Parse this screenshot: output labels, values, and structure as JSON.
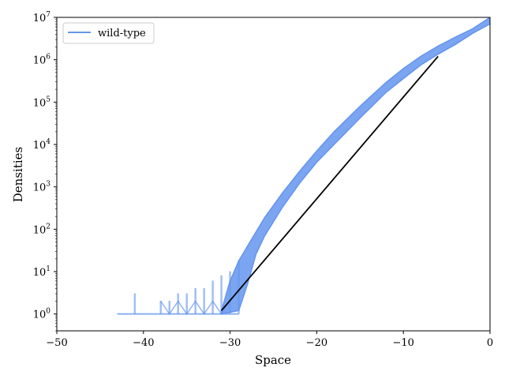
{
  "chart_data": {
    "type": "line",
    "title": "",
    "xlabel": "Space",
    "ylabel": "Densities",
    "xlim": [
      -50,
      0
    ],
    "ylim": [
      0.4,
      10000000
    ],
    "y_scale": "log",
    "grid": false,
    "legend_placement": "top-left",
    "x_ticks": [
      -50,
      -40,
      -30,
      -20,
      -10,
      0
    ],
    "x_tick_labels": [
      "−50",
      "−40",
      "−30",
      "−20",
      "−10",
      "0"
    ],
    "y_ticks": [
      1,
      10,
      100,
      1000,
      10000,
      100000,
      1000000,
      10000000
    ],
    "y_tick_labels": [
      {
        "base": "10",
        "exp": "0"
      },
      {
        "base": "10",
        "exp": "1"
      },
      {
        "base": "10",
        "exp": "2"
      },
      {
        "base": "10",
        "exp": "3"
      },
      {
        "base": "10",
        "exp": "4"
      },
      {
        "base": "10",
        "exp": "5"
      },
      {
        "base": "10",
        "exp": "6"
      },
      {
        "base": "10",
        "exp": "7"
      }
    ],
    "series": [
      {
        "name": "wild-type",
        "color": "#6495ED",
        "band_upper": [
          [
            -31,
            1.2
          ],
          [
            -30,
            6
          ],
          [
            -29,
            18
          ],
          [
            -28,
            40
          ],
          [
            -26,
            190
          ],
          [
            -24,
            700
          ],
          [
            -22,
            2300
          ],
          [
            -20,
            7000
          ],
          [
            -18,
            20000
          ],
          [
            -15,
            80000
          ],
          [
            -12,
            290000
          ],
          [
            -10,
            620000
          ],
          [
            -8,
            1200000
          ],
          [
            -6,
            2100000
          ],
          [
            -4,
            3400000
          ],
          [
            -2,
            5400000
          ],
          [
            0,
            10000000
          ]
        ],
        "band_lower": [
          [
            0,
            7000000
          ],
          [
            -2,
            4200000
          ],
          [
            -4,
            2300000
          ],
          [
            -6,
            1350000
          ],
          [
            -8,
            750000
          ],
          [
            -10,
            360000
          ],
          [
            -12,
            170000
          ],
          [
            -15,
            42000
          ],
          [
            -18,
            10000
          ],
          [
            -20,
            3800
          ],
          [
            -22,
            1200
          ],
          [
            -24,
            320
          ],
          [
            -26,
            70
          ],
          [
            -27,
            26
          ],
          [
            -28,
            5
          ],
          [
            -29,
            1.2
          ],
          [
            -31,
            1
          ]
        ],
        "low_noise_x": [
          -43,
          -42,
          -41,
          -40,
          -39,
          -38,
          -37,
          -36,
          -35,
          -34,
          -33,
          -32,
          -31,
          -30,
          -29
        ],
        "low_noise_peaks": [
          1,
          1,
          3,
          1,
          1,
          2,
          2,
          3,
          3,
          4,
          4,
          6,
          8,
          10,
          18
        ]
      },
      {
        "color": "#000000",
        "x": [
          -31,
          -6
        ],
        "y": [
          1.2,
          1200000
        ]
      }
    ]
  }
}
